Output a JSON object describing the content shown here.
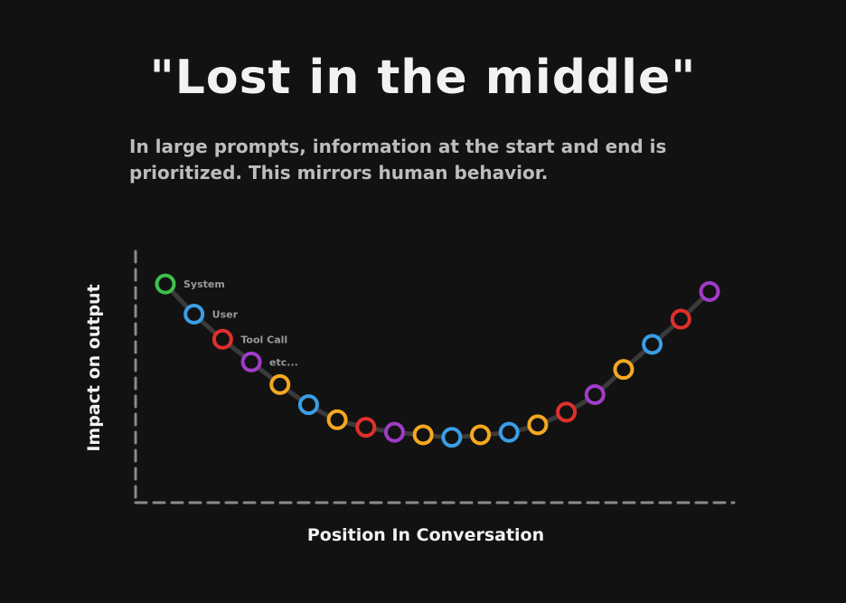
{
  "title": "\"Lost in the middle\"",
  "subtitle": "In large prompts, information at the start and end is prioritized. This mirrors human behavior.",
  "chart_data": {
    "type": "scatter",
    "title": "\"Lost in the middle\"",
    "subtitle": "In large prompts, information at the start and end is prioritized. This mirrors human behavior.",
    "xlabel": "Position In Conversation",
    "ylabel": "Impact on output",
    "grid": false,
    "connected": true,
    "line_color": "#3a3a3a",
    "axis_color": "#8a8a8a",
    "colors": {
      "green": "#3fbf4f",
      "blue": "#3a9ee6",
      "red": "#e0302c",
      "purple": "#a03cc8",
      "yellow": "#f5a820"
    },
    "points": [
      {
        "x": 1,
        "y": 0.87,
        "color": "green",
        "label": "System"
      },
      {
        "x": 2,
        "y": 0.75,
        "color": "blue",
        "label": "User"
      },
      {
        "x": 3,
        "y": 0.65,
        "color": "red",
        "label": "Tool Call"
      },
      {
        "x": 4,
        "y": 0.56,
        "color": "purple",
        "label": "etc..."
      },
      {
        "x": 5,
        "y": 0.47,
        "color": "yellow",
        "label": ""
      },
      {
        "x": 6,
        "y": 0.39,
        "color": "blue",
        "label": ""
      },
      {
        "x": 7,
        "y": 0.33,
        "color": "yellow",
        "label": ""
      },
      {
        "x": 8,
        "y": 0.3,
        "color": "red",
        "label": ""
      },
      {
        "x": 9,
        "y": 0.28,
        "color": "purple",
        "label": ""
      },
      {
        "x": 10,
        "y": 0.27,
        "color": "yellow",
        "label": ""
      },
      {
        "x": 11,
        "y": 0.26,
        "color": "blue",
        "label": ""
      },
      {
        "x": 12,
        "y": 0.27,
        "color": "yellow",
        "label": ""
      },
      {
        "x": 13,
        "y": 0.28,
        "color": "blue",
        "label": ""
      },
      {
        "x": 14,
        "y": 0.31,
        "color": "yellow",
        "label": ""
      },
      {
        "x": 15,
        "y": 0.36,
        "color": "red",
        "label": ""
      },
      {
        "x": 16,
        "y": 0.43,
        "color": "purple",
        "label": ""
      },
      {
        "x": 17,
        "y": 0.53,
        "color": "yellow",
        "label": ""
      },
      {
        "x": 18,
        "y": 0.63,
        "color": "blue",
        "label": ""
      },
      {
        "x": 19,
        "y": 0.73,
        "color": "red",
        "label": ""
      },
      {
        "x": 20,
        "y": 0.84,
        "color": "purple",
        "label": ""
      }
    ]
  }
}
